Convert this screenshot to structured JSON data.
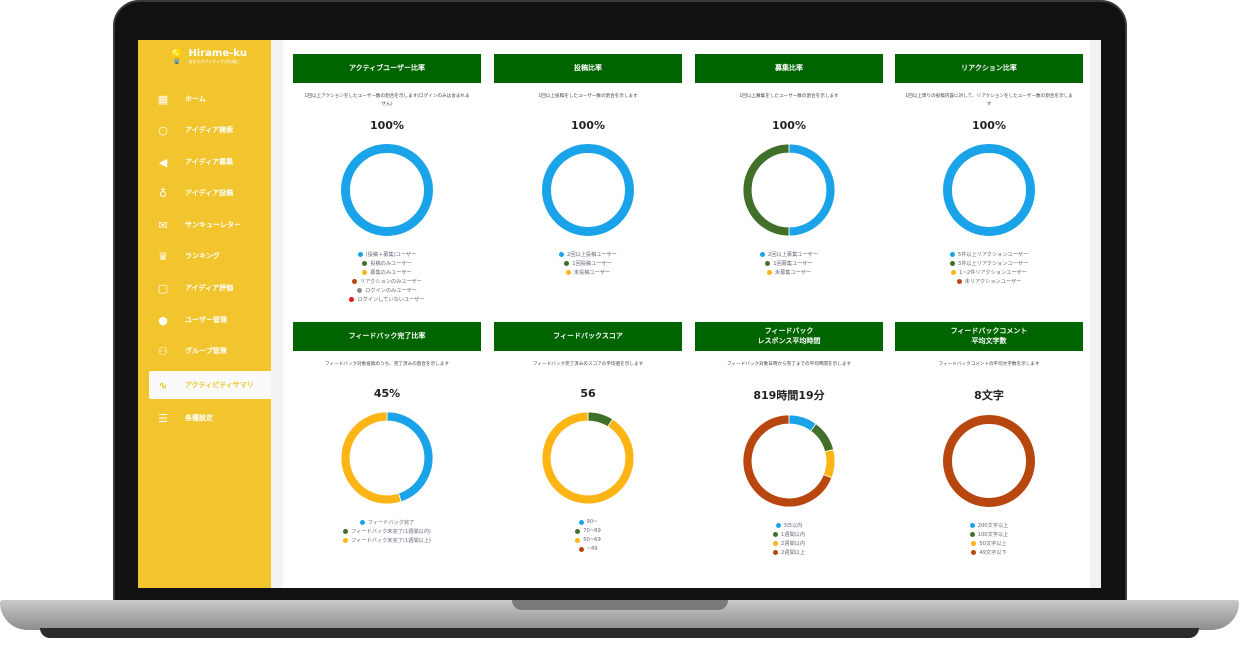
{
  "app": {
    "logo": "Hirame-ku",
    "tagline": "あなたのアイディアが仕事に"
  },
  "sidebar": {
    "items": [
      {
        "label": "ホーム",
        "icon": "dashboard-icon"
      },
      {
        "label": "アイディア検索",
        "icon": "search-icon"
      },
      {
        "label": "アイディア募集",
        "icon": "megaphone-icon"
      },
      {
        "label": "アイディア投稿",
        "icon": "lightbulb-icon"
      },
      {
        "label": "サンキューレター",
        "icon": "envelope-icon"
      },
      {
        "label": "ランキング",
        "icon": "trophy-icon"
      },
      {
        "label": "アイディア評価",
        "icon": "document-check-icon"
      },
      {
        "label": "ユーザー管理",
        "icon": "user-icon"
      },
      {
        "label": "グループ管理",
        "icon": "group-icon"
      },
      {
        "label": "アクティビティサマリ",
        "icon": "activity-chart-icon",
        "active": true
      },
      {
        "label": "各種設定",
        "icon": "sliders-icon"
      }
    ]
  },
  "colors": {
    "blue": "#1aa3e8",
    "green": "#41702a",
    "yellow": "#fdb515",
    "orange": "#b8470f",
    "gray": "#8a8a8a",
    "red": "#ee1111",
    "header": "#006400",
    "sidebar": "#f2c52e"
  },
  "chart_data": [
    {
      "type": "pie",
      "title": "アクティブユーザー比率",
      "description": "1回以上アクションをしたユーザー数の割合を示します(ログインのみは含まれません)",
      "value": "100%",
      "categories": [
        "(投稿＋募集)ユーザー",
        "投稿のみユーザー",
        "募集のみユーザー",
        "リアクションのみユーザー",
        "ログインのみユーザー",
        "ログインしていないユーザー"
      ],
      "colors": [
        "#1aa3e8",
        "#41702a",
        "#fdb515",
        "#b8470f",
        "#8a8a8a",
        "#ee1111"
      ],
      "values": [
        100,
        0,
        0,
        0,
        0,
        0
      ]
    },
    {
      "type": "pie",
      "title": "投稿比率",
      "description": "1回以上投稿をしたユーザー数の割合を示します",
      "value": "100%",
      "categories": [
        "2回以上投稿ユーザー",
        "1回投稿ユーザー",
        "未投稿ユーザー"
      ],
      "colors": [
        "#1aa3e8",
        "#41702a",
        "#fdb515"
      ],
      "values": [
        100,
        0,
        0
      ]
    },
    {
      "type": "pie",
      "title": "募集比率",
      "description": "1回以上募集をしたユーザー数の割合を示します",
      "value": "100%",
      "categories": [
        "2回以上募集ユーザー",
        "1回募集ユーザー",
        "未募集ユーザー"
      ],
      "colors": [
        "#1aa3e8",
        "#41702a",
        "#fdb515"
      ],
      "values": [
        50,
        50,
        0
      ]
    },
    {
      "type": "pie",
      "title": "リアクション比率",
      "description": "1回以上周りの投稿内容に対して、リアクションをしたユーザー数の割合を示します",
      "value": "100%",
      "categories": [
        "5件以上リアクションユーザー",
        "3件以上リアクションユーザー",
        "1~2件リアクションユーザー",
        "未リアクションユーザー"
      ],
      "colors": [
        "#1aa3e8",
        "#41702a",
        "#fdb515",
        "#b8470f"
      ],
      "values": [
        100,
        0,
        0,
        0
      ]
    },
    {
      "type": "pie",
      "title": "フィードバック完了比率",
      "description": "フィードバック対象投稿のうち、完了済みの割合を示します",
      "value": "45%",
      "categories": [
        "フィードバック完了",
        "フィードバック未完了(1週間以内)",
        "フィードバック未完了(1週間以上)"
      ],
      "colors": [
        "#1aa3e8",
        "#41702a",
        "#fdb515"
      ],
      "values": [
        45,
        0,
        55
      ]
    },
    {
      "type": "pie",
      "title": "フィードバックスコア",
      "description": "フィードバック完了済みのスコアの平均値を示します",
      "value": "56",
      "categories": [
        "90~",
        "70~89",
        "50~69",
        "~49"
      ],
      "colors": [
        "#1aa3e8",
        "#41702a",
        "#fdb515",
        "#b8470f"
      ],
      "values": [
        0,
        9,
        91,
        0
      ]
    },
    {
      "type": "pie",
      "title": "フィードバック\nレスポンス平均時間",
      "description": "フィードバック対象日時から完了までの平均時間を示します",
      "value": "819時間19分",
      "categories": [
        "3日以内",
        "1週間以内",
        "2週間以内",
        "2週間以上"
      ],
      "colors": [
        "#1aa3e8",
        "#41702a",
        "#fdb515",
        "#b8470f"
      ],
      "values": [
        10,
        11,
        10,
        69
      ]
    },
    {
      "type": "pie",
      "title": "フィードバックコメント\n平均文字数",
      "description": "フィードバックコメントの平均文字数を示します",
      "value": "8文字",
      "categories": [
        "200文字以上",
        "100文字以上",
        "50文字以上",
        "49文字以下"
      ],
      "colors": [
        "#1aa3e8",
        "#41702a",
        "#fdb515",
        "#b8470f"
      ],
      "values": [
        0,
        0,
        0,
        100
      ]
    }
  ]
}
